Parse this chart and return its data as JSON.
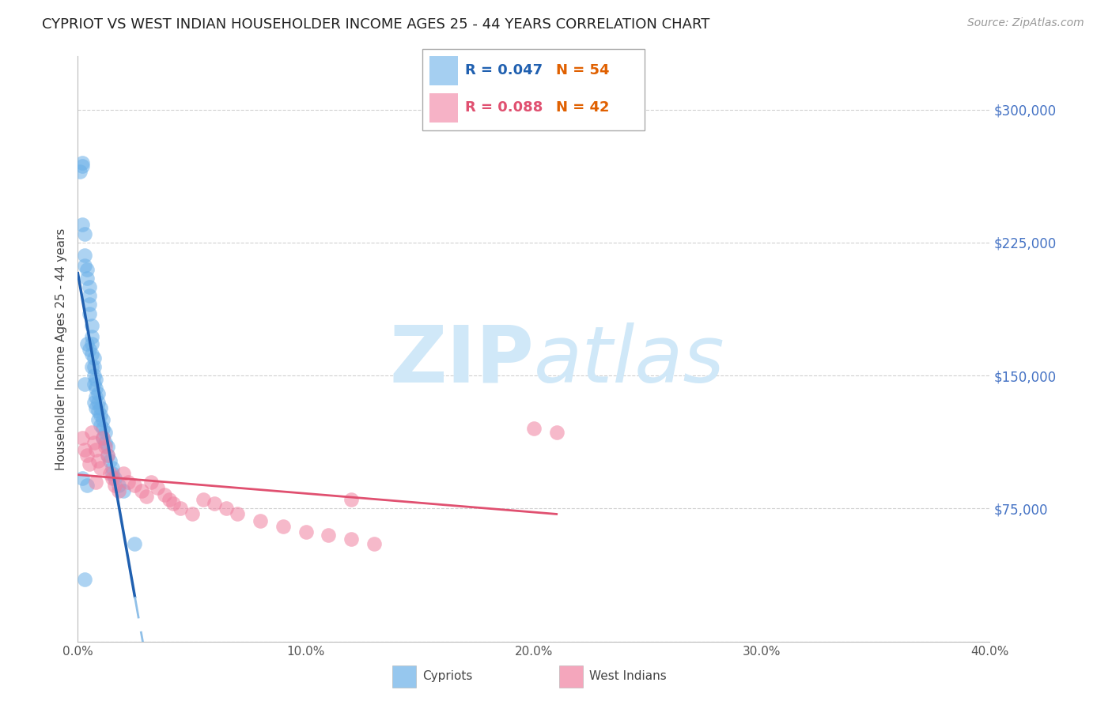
{
  "title": "CYPRIOT VS WEST INDIAN HOUSEHOLDER INCOME AGES 25 - 44 YEARS CORRELATION CHART",
  "source": "Source: ZipAtlas.com",
  "ylabel": "Householder Income Ages 25 - 44 years",
  "xlim": [
    0.0,
    0.4
  ],
  "ylim": [
    0,
    330000
  ],
  "yticks": [
    0,
    75000,
    150000,
    225000,
    300000
  ],
  "ytick_labels": [
    "",
    "$75,000",
    "$150,000",
    "$225,000",
    "$300,000"
  ],
  "xticks": [
    0.0,
    0.1,
    0.2,
    0.3,
    0.4
  ],
  "xtick_labels": [
    "0.0%",
    "10.0%",
    "20.0%",
    "30.0%",
    "40.0%"
  ],
  "cypriot_color": "#6ab0e8",
  "west_indian_color": "#f080a0",
  "cypriot_line_color": "#2060b0",
  "west_indian_line_color": "#e05070",
  "dashed_line_color": "#90c0e8",
  "watermark_color": "#d0e8f8",
  "background_color": "#ffffff",
  "grid_color": "#cccccc",
  "ytick_label_color": "#4472c4",
  "xtick_label_color": "#555555",
  "title_color": "#222222",
  "cypriot_x": [
    0.001,
    0.002,
    0.002,
    0.002,
    0.003,
    0.003,
    0.003,
    0.003,
    0.004,
    0.004,
    0.004,
    0.005,
    0.005,
    0.005,
    0.005,
    0.005,
    0.006,
    0.006,
    0.006,
    0.006,
    0.006,
    0.007,
    0.007,
    0.007,
    0.007,
    0.007,
    0.008,
    0.008,
    0.008,
    0.008,
    0.009,
    0.009,
    0.009,
    0.009,
    0.01,
    0.01,
    0.01,
    0.011,
    0.011,
    0.011,
    0.012,
    0.012,
    0.013,
    0.013,
    0.014,
    0.015,
    0.015,
    0.016,
    0.018,
    0.02,
    0.025,
    0.003,
    0.004,
    0.002
  ],
  "cypriot_y": [
    265000,
    270000,
    268000,
    235000,
    230000,
    218000,
    212000,
    35000,
    210000,
    205000,
    168000,
    200000,
    195000,
    190000,
    185000,
    165000,
    178000,
    172000,
    168000,
    162000,
    155000,
    160000,
    155000,
    150000,
    145000,
    135000,
    148000,
    143000,
    138000,
    132000,
    140000,
    135000,
    130000,
    125000,
    132000,
    128000,
    122000,
    125000,
    120000,
    115000,
    118000,
    112000,
    110000,
    105000,
    102000,
    98000,
    95000,
    92000,
    88000,
    85000,
    55000,
    145000,
    88000,
    92000
  ],
  "west_indian_x": [
    0.002,
    0.003,
    0.004,
    0.005,
    0.006,
    0.007,
    0.008,
    0.008,
    0.009,
    0.01,
    0.011,
    0.012,
    0.013,
    0.014,
    0.015,
    0.016,
    0.018,
    0.02,
    0.022,
    0.025,
    0.028,
    0.03,
    0.032,
    0.035,
    0.038,
    0.04,
    0.042,
    0.045,
    0.05,
    0.055,
    0.06,
    0.065,
    0.07,
    0.08,
    0.09,
    0.1,
    0.11,
    0.12,
    0.13,
    0.12,
    0.2,
    0.21
  ],
  "west_indian_y": [
    115000,
    108000,
    105000,
    100000,
    118000,
    112000,
    108000,
    90000,
    102000,
    98000,
    115000,
    110000,
    105000,
    95000,
    92000,
    88000,
    85000,
    95000,
    90000,
    88000,
    85000,
    82000,
    90000,
    87000,
    83000,
    80000,
    78000,
    75000,
    72000,
    80000,
    78000,
    75000,
    72000,
    68000,
    65000,
    62000,
    60000,
    58000,
    55000,
    80000,
    120000,
    118000
  ]
}
